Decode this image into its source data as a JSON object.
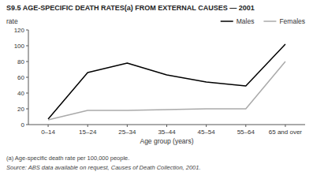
{
  "chart_data": {
    "type": "line",
    "title": "S9.5   AGE-SPECIFIC DEATH RATES(a) FROM EXTERNAL CAUSES — 2001",
    "xlabel": "Age group (years)",
    "ylabel": "rate",
    "categories": [
      "0–14",
      "15–24",
      "25–34",
      "35–44",
      "45–54",
      "55–64",
      "65 and over"
    ],
    "series": [
      {
        "name": "Males",
        "color": "#000000",
        "values": [
          7,
          66,
          78,
          63,
          54,
          49,
          102
        ]
      },
      {
        "name": "Females",
        "color": "#aaaaaa",
        "values": [
          6,
          18,
          18,
          19,
          20,
          20,
          80
        ]
      }
    ],
    "ylim": [
      0,
      120
    ],
    "yticks": [
      0,
      20,
      40,
      60,
      80,
      100,
      120
    ],
    "footnotes": [
      "(a) Age-specific death rate per 100,000 people.",
      "Source: ABS data available on request, Causes of Death Collection, 2001."
    ],
    "legend": "upper right",
    "grid": false
  }
}
